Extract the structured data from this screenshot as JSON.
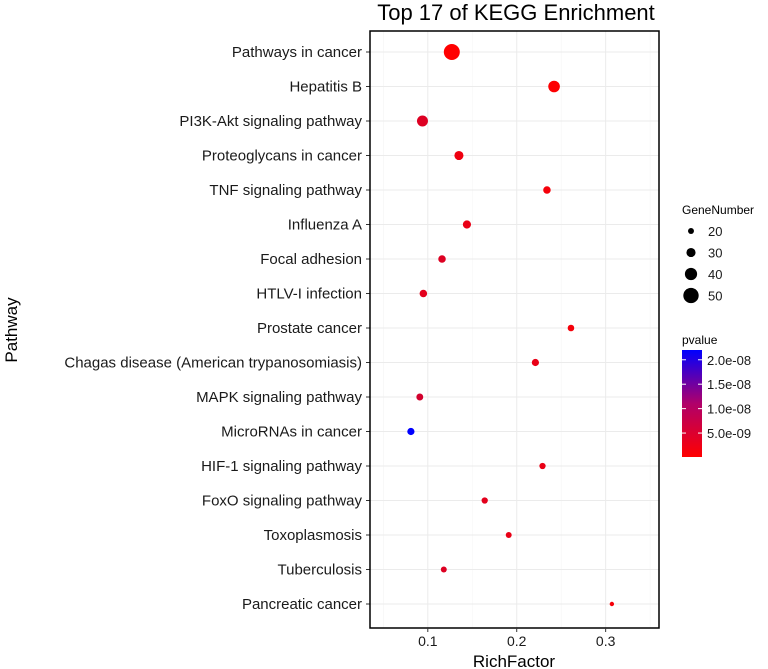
{
  "chart_data": {
    "type": "scatter",
    "title": "Top 17 of KEGG Enrichment",
    "xlabel": "RichFactor",
    "ylabel": "Pathway",
    "xlim": [
      0.035,
      0.36
    ],
    "xticks": [
      0.1,
      0.2,
      0.3
    ],
    "xtick_labels": [
      "0.1",
      "0.2",
      "0.3"
    ],
    "grid": true,
    "points": [
      {
        "pathway": "Pathways in cancer",
        "rich_factor": 0.127,
        "gene_number": 52,
        "pvalue": 1e-10
      },
      {
        "pathway": "Hepatitis B",
        "rich_factor": 0.242,
        "gene_number": 38,
        "pvalue": 3e-10
      },
      {
        "pathway": "PI3K-Akt signaling pathway",
        "rich_factor": 0.094,
        "gene_number": 36,
        "pvalue": 3e-09
      },
      {
        "pathway": "Proteoglycans in cancer",
        "rich_factor": 0.135,
        "gene_number": 30,
        "pvalue": 1.5e-09
      },
      {
        "pathway": "TNF signaling pathway",
        "rich_factor": 0.234,
        "gene_number": 25,
        "pvalue": 1e-09
      },
      {
        "pathway": "Influenza A",
        "rich_factor": 0.144,
        "gene_number": 27,
        "pvalue": 2e-09
      },
      {
        "pathway": "Focal adhesion",
        "rich_factor": 0.116,
        "gene_number": 25,
        "pvalue": 3e-09
      },
      {
        "pathway": "HTLV-I infection",
        "rich_factor": 0.095,
        "gene_number": 25,
        "pvalue": 2.5e-09
      },
      {
        "pathway": "Prostate cancer",
        "rich_factor": 0.261,
        "gene_number": 22,
        "pvalue": 1e-09
      },
      {
        "pathway": "Chagas disease (American trypanosomiasis)",
        "rich_factor": 0.221,
        "gene_number": 24,
        "pvalue": 2e-09
      },
      {
        "pathway": "MAPK signaling pathway",
        "rich_factor": 0.091,
        "gene_number": 23,
        "pvalue": 4e-09
      },
      {
        "pathway": "MicroRNAs in cancer",
        "rich_factor": 0.081,
        "gene_number": 24,
        "pvalue": 2.2e-08
      },
      {
        "pathway": "HIF-1 signaling pathway",
        "rich_factor": 0.229,
        "gene_number": 21,
        "pvalue": 2e-09
      },
      {
        "pathway": "FoxO signaling pathway",
        "rich_factor": 0.164,
        "gene_number": 21,
        "pvalue": 2.5e-09
      },
      {
        "pathway": "Toxoplasmosis",
        "rich_factor": 0.191,
        "gene_number": 20,
        "pvalue": 2e-09
      },
      {
        "pathway": "Tuberculosis",
        "rich_factor": 0.118,
        "gene_number": 20,
        "pvalue": 3e-09
      },
      {
        "pathway": "Pancreatic cancer",
        "rich_factor": 0.307,
        "gene_number": 15,
        "pvalue": 1e-09
      }
    ],
    "size_legend": {
      "title": "GeneNumber",
      "values": [
        20,
        30,
        40,
        50
      ],
      "labels": [
        "20",
        "30",
        "40",
        "50"
      ],
      "position": "right"
    },
    "color_legend": {
      "title": "pvalue",
      "low_color": "#ff0000",
      "high_color": "#0000ff",
      "range": [
        1e-10,
        2.2e-08
      ],
      "ticks": [
        2e-08,
        1.5e-08,
        1e-08,
        5e-09
      ],
      "tick_labels": [
        "2.0e-08",
        "1.5e-08",
        "1.0e-08",
        "5.0e-09"
      ],
      "position": "right"
    }
  }
}
